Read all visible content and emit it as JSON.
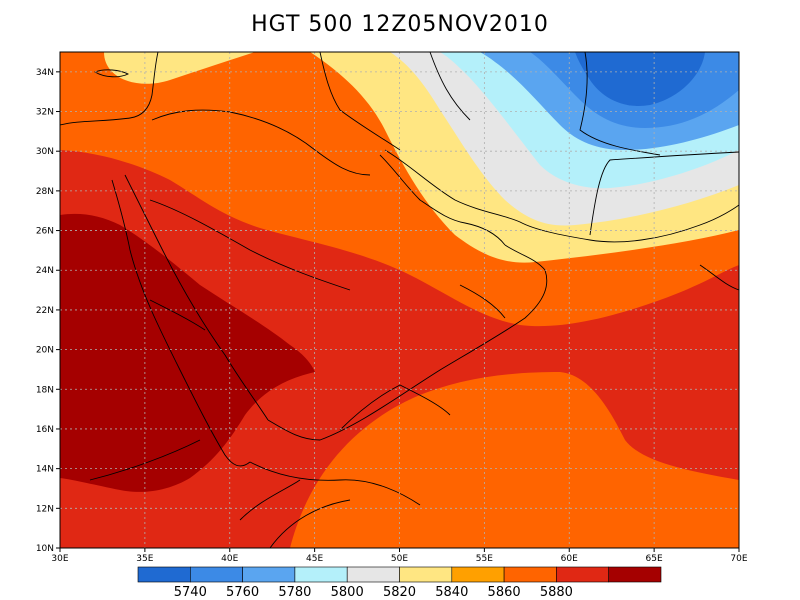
{
  "title": "HGT 500 12Z05NOV2010",
  "map": {
    "lon_range": [
      30,
      70
    ],
    "lat_range": [
      10,
      35
    ],
    "x_ticks": [
      "30E",
      "35E",
      "40E",
      "45E",
      "50E",
      "55E",
      "60E",
      "65E",
      "70E"
    ],
    "y_ticks": [
      "10N",
      "12N",
      "14N",
      "16N",
      "18N",
      "20N",
      "22N",
      "24N",
      "26N",
      "28N",
      "30N",
      "32N",
      "34N"
    ],
    "grid": "dotted"
  },
  "colorbar": {
    "labels": [
      "5740",
      "5760",
      "5780",
      "5800",
      "5820",
      "5840",
      "5860",
      "5880"
    ],
    "colors": [
      "#1f6ad2",
      "#3c8ae6",
      "#5aa5f0",
      "#b4f0fa",
      "#e6e6e6",
      "#ffe682",
      "#ffa000",
      "#ff6400",
      "#e02814",
      "#a50000"
    ]
  },
  "fill_colors": {
    "5740": "#1f6ad2",
    "5760": "#3c8ae6",
    "5780": "#5aa5f0",
    "5800": "#b4f0fa",
    "5820": "#e6e6e6",
    "5840": "#ffe682",
    "5860": "#ff6400",
    "5880": "#e02814",
    "5900": "#a50000"
  }
}
